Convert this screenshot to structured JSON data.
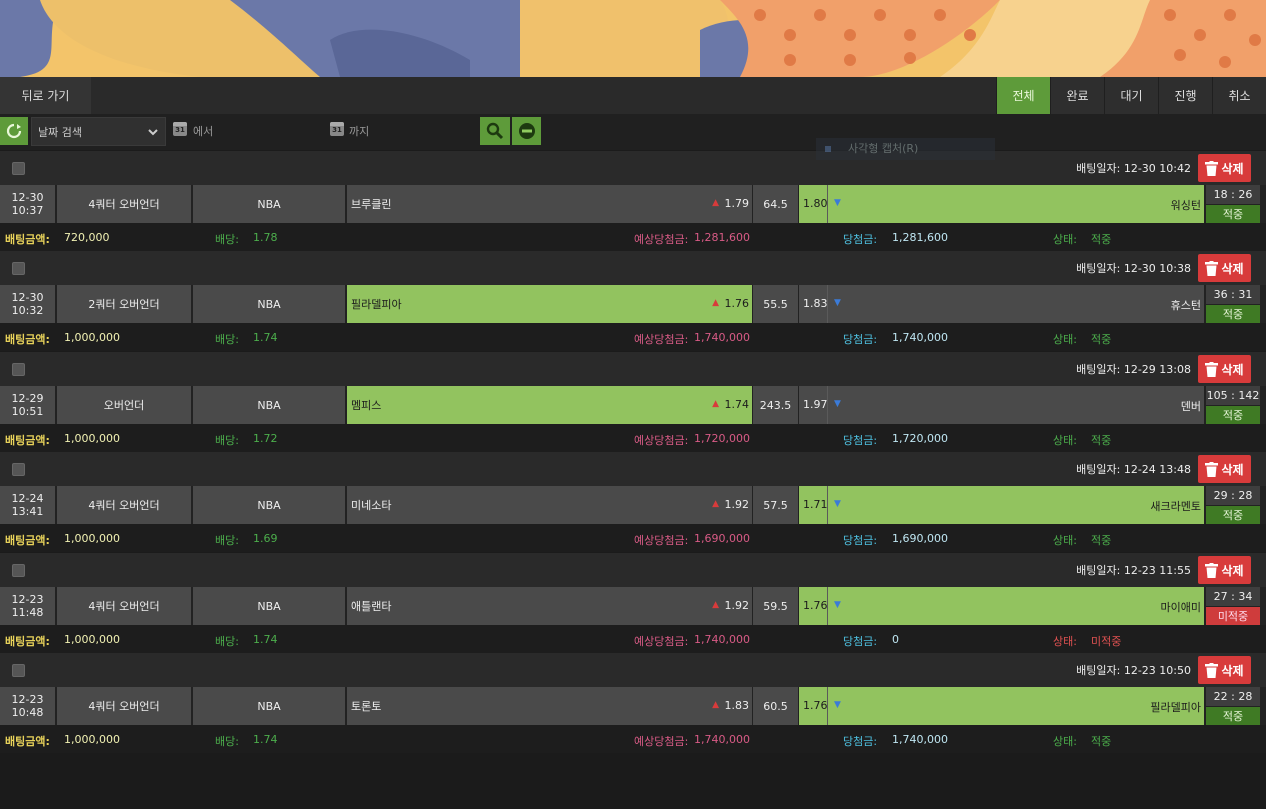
{
  "nav": {
    "back_label": "뒤로 가기"
  },
  "tabs": [
    "전체",
    "완료",
    "대기",
    "진행",
    "취소"
  ],
  "filter": {
    "date_select": "날짜 검색",
    "from_label": "에서",
    "to_label": "까지",
    "ghost_text": "사각형 캡처(R)"
  },
  "labels": {
    "delete": "삭제",
    "bet_date_prefix": "배팅일자: ",
    "bet_amount": "배팅금액:",
    "odds": "배당:",
    "expected": "예상당첨금:",
    "winnings": "당첨금:",
    "status": "상태:"
  },
  "bets": [
    {
      "bet_date": "배팅일자: 12-30 10:42",
      "date": "12-30",
      "time": "10:37",
      "type": "4쿼터 오버언더",
      "league": "NBA",
      "home": "브루클린",
      "home_odds": "1.79",
      "line": "64.5",
      "away_odds": "1.80",
      "away": "워싱턴",
      "score": "18 : 26",
      "winner": "away",
      "result": "적중",
      "amount": "720,000",
      "odds": "1.78",
      "expected": "1,281,600",
      "winnings": "1,281,600",
      "status": "적중",
      "hit": true
    },
    {
      "bet_date": "배팅일자: 12-30 10:38",
      "date": "12-30",
      "time": "10:32",
      "type": "2쿼터 오버언더",
      "league": "NBA",
      "home": "필라델피아",
      "home_odds": "1.76",
      "line": "55.5",
      "away_odds": "1.83",
      "away": "휴스턴",
      "score": "36 : 31",
      "winner": "home",
      "result": "적중",
      "amount": "1,000,000",
      "odds": "1.74",
      "expected": "1,740,000",
      "winnings": "1,740,000",
      "status": "적중",
      "hit": true
    },
    {
      "bet_date": "배팅일자: 12-29 13:08",
      "date": "12-29",
      "time": "10:51",
      "type": "오버언더",
      "league": "NBA",
      "home": "멤피스",
      "home_odds": "1.74",
      "line": "243.5",
      "away_odds": "1.97",
      "away": "덴버",
      "score": "105 : 142",
      "winner": "home",
      "result": "적중",
      "amount": "1,000,000",
      "odds": "1.72",
      "expected": "1,720,000",
      "winnings": "1,720,000",
      "status": "적중",
      "hit": true
    },
    {
      "bet_date": "배팅일자: 12-24 13:48",
      "date": "12-24",
      "time": "13:41",
      "type": "4쿼터 오버언더",
      "league": "NBA",
      "home": "미네소타",
      "home_odds": "1.92",
      "line": "57.5",
      "away_odds": "1.71",
      "away": "새크라멘토",
      "score": "29 : 28",
      "winner": "away",
      "result": "적중",
      "amount": "1,000,000",
      "odds": "1.69",
      "expected": "1,690,000",
      "winnings": "1,690,000",
      "status": "적중",
      "hit": true
    },
    {
      "bet_date": "배팅일자: 12-23 11:55",
      "date": "12-23",
      "time": "11:48",
      "type": "4쿼터 오버언더",
      "league": "NBA",
      "home": "애틀랜타",
      "home_odds": "1.92",
      "line": "59.5",
      "away_odds": "1.76",
      "away": "마이애미",
      "score": "27 : 34",
      "winner": "away",
      "result": "미적중",
      "amount": "1,000,000",
      "odds": "1.74",
      "expected": "1,740,000",
      "winnings": "0",
      "status": "미적중",
      "hit": false
    },
    {
      "bet_date": "배팅일자: 12-23 10:50",
      "date": "12-23",
      "time": "10:48",
      "type": "4쿼터 오버언더",
      "league": "NBA",
      "home": "토론토",
      "home_odds": "1.83",
      "line": "60.5",
      "away_odds": "1.76",
      "away": "필라델피아",
      "score": "22 : 28",
      "winner": "away",
      "result": "적중",
      "amount": "1,000,000",
      "odds": "1.74",
      "expected": "1,740,000",
      "winnings": "1,740,000",
      "status": "적중",
      "hit": true
    }
  ]
}
